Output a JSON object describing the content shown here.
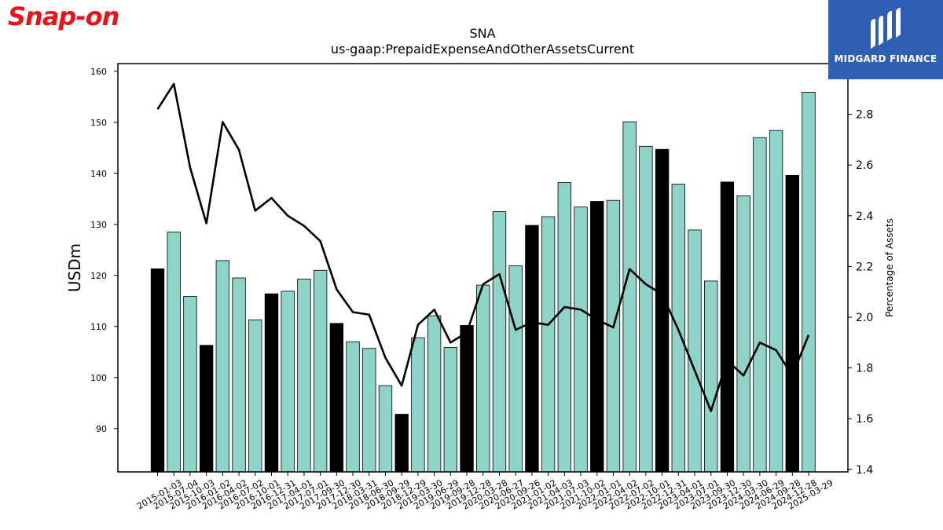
{
  "brand": {
    "left_logo_text": "Snap-on",
    "right_logo_text": "MIDGARD FINANCE",
    "left_logo_color": "#e8141b",
    "right_logo_bg": "#2f5fb3",
    "right_logo_icon": "midgard-logo-icon"
  },
  "chart_data": {
    "type": "bar",
    "title": "SNA",
    "subtitle": "us-gaap:PrepaidExpenseAndOtherAssetsCurrent",
    "ylabel": "USDm",
    "y2label": "Percentage of Assets",
    "ylim": [
      81.5,
      161.5
    ],
    "y2lim": [
      1.39,
      3.0
    ],
    "yticks": [
      90,
      100,
      110,
      120,
      130,
      140,
      150,
      160
    ],
    "y2ticks": [
      1.4,
      1.6,
      1.8,
      2.0,
      2.2,
      2.4,
      2.6,
      2.8
    ],
    "categories": [
      "2015-01-03",
      "2015-07-04",
      "2015-10-03",
      "2016-01-02",
      "2016-04-02",
      "2016-07-02",
      "2016-10-01",
      "2016-12-31",
      "2017-04-01",
      "2017-07-01",
      "2017-09-30",
      "2017-12-30",
      "2018-03-31",
      "2018-06-30",
      "2018-09-29",
      "2018-12-29",
      "2019-03-30",
      "2019-06-29",
      "2019-09-28",
      "2019-12-28",
      "2020-03-28",
      "2020-06-27",
      "2020-09-26",
      "2021-01-02",
      "2021-04-03",
      "2021-07-03",
      "2021-10-02",
      "2022-01-01",
      "2022-04-02",
      "2022-07-02",
      "2022-10-01",
      "2022-12-31",
      "2023-04-01",
      "2023-07-01",
      "2023-09-30",
      "2023-12-30",
      "2024-03-30",
      "2024-06-29",
      "2024-09-28",
      "2024-12-28",
      "2025-03-29"
    ],
    "series": [
      {
        "type": "bar",
        "values": [
          121.3,
          128.5,
          115.9,
          106.3,
          122.9,
          119.5,
          111.3,
          116.4,
          116.9,
          119.3,
          121.0,
          110.6,
          107.0,
          105.7,
          98.4,
          92.8,
          107.8,
          112.1,
          105.9,
          110.2,
          118.1,
          132.5,
          121.9,
          129.8,
          131.5,
          138.2,
          133.4,
          134.5,
          134.7,
          150.1,
          145.3,
          144.7,
          137.9,
          128.9,
          118.9,
          138.3,
          135.6,
          147.0,
          148.4,
          139.6,
          155.9
        ],
        "highlight": [
          true,
          false,
          false,
          true,
          false,
          false,
          false,
          true,
          false,
          false,
          false,
          true,
          false,
          false,
          false,
          true,
          false,
          false,
          false,
          true,
          false,
          false,
          false,
          true,
          false,
          false,
          false,
          true,
          false,
          false,
          false,
          true,
          false,
          false,
          false,
          true,
          false,
          false,
          false,
          true,
          false
        ],
        "color": "#8dd3c7",
        "highlight_color": "#000000"
      },
      {
        "type": "line",
        "axis": "right",
        "values": [
          2.82,
          2.92,
          2.59,
          2.37,
          2.77,
          2.66,
          2.42,
          2.47,
          2.4,
          2.36,
          2.3,
          2.11,
          2.02,
          2.01,
          1.84,
          1.73,
          1.97,
          2.03,
          1.9,
          1.94,
          2.13,
          2.17,
          1.95,
          1.98,
          1.97,
          2.04,
          2.03,
          1.99,
          1.96,
          2.19,
          2.13,
          2.09,
          1.95,
          1.79,
          1.63,
          1.83,
          1.77,
          1.9,
          1.87,
          1.77,
          1.93
        ],
        "color": "#000000"
      }
    ],
    "grid": false
  }
}
